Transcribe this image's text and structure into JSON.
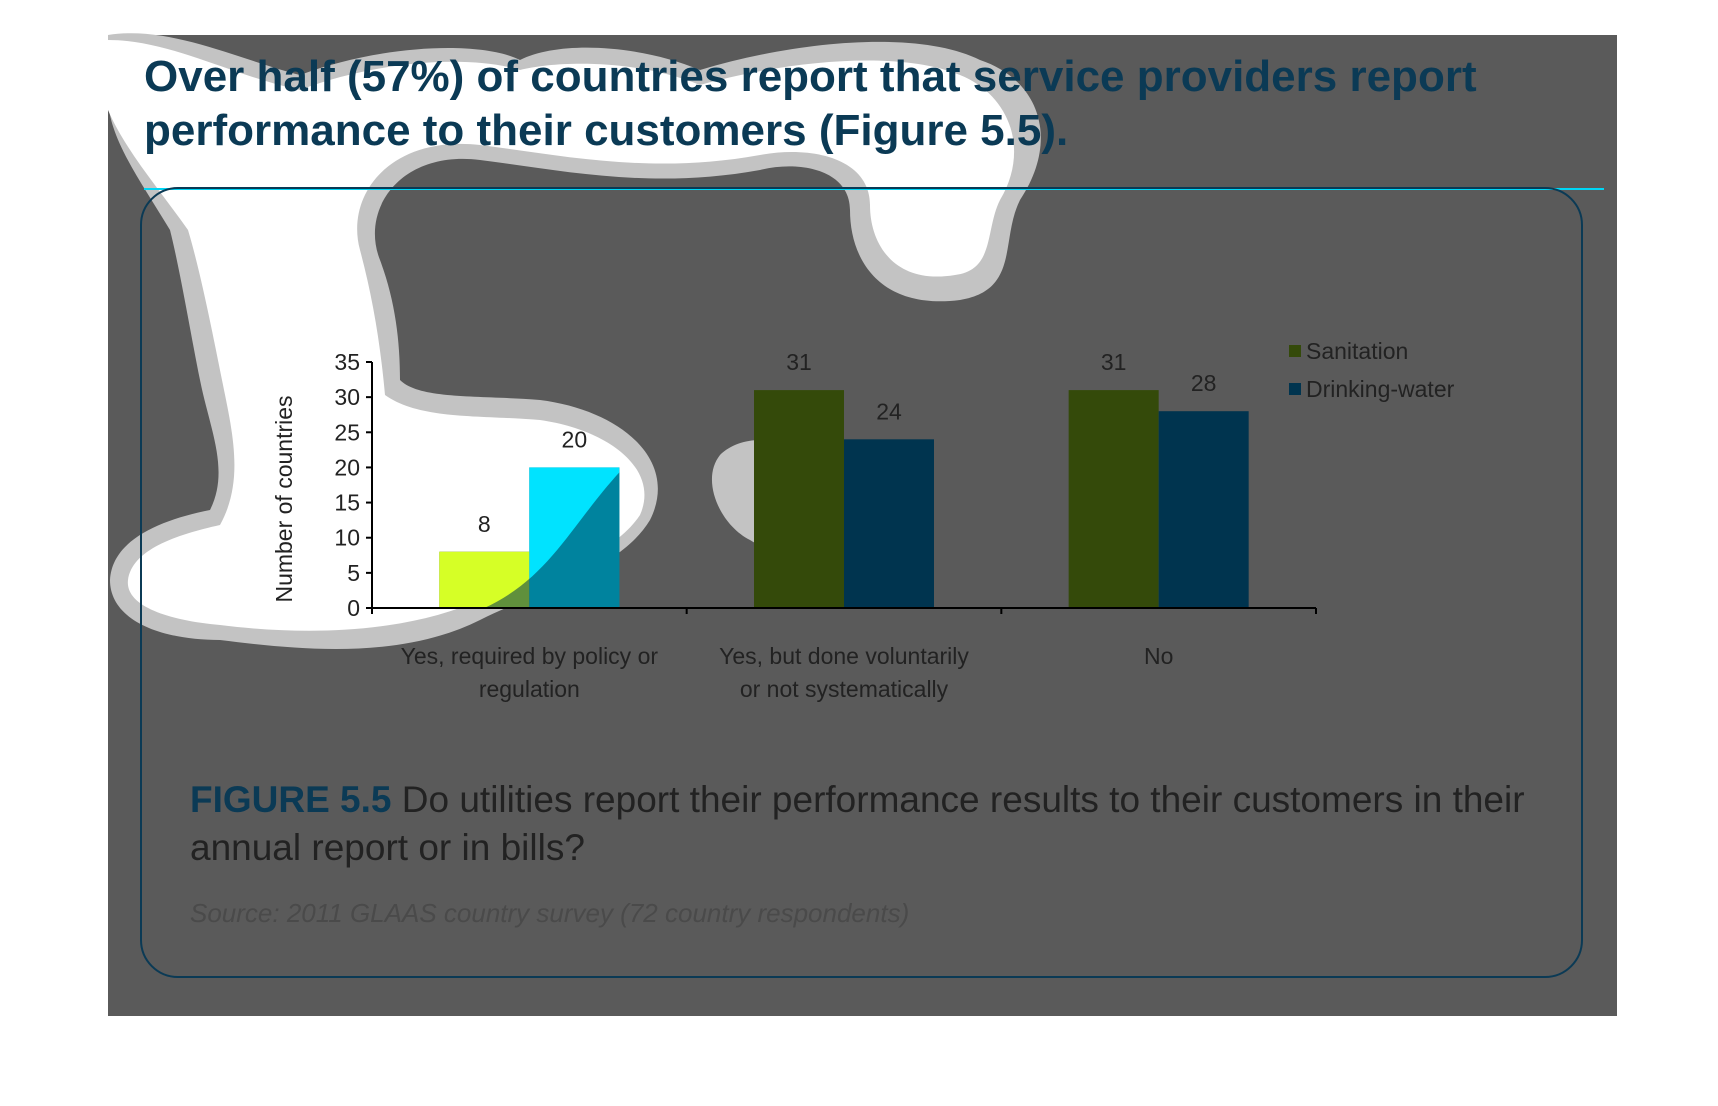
{
  "headline": "Over half (57%) of countries report that service providers report performance to their customers (Figure 5.5).",
  "colors": {
    "background_dark": "#5a5a5a",
    "accent_navy": "#0b3a55",
    "accent_cyan": "#00d6f5",
    "sanitation": "#344a0a",
    "drinking_water": "#00344f",
    "sanitation_highlight": "#d6ff26",
    "drinking_water_highlight": "#00e3ff"
  },
  "chart_data": {
    "type": "bar",
    "title": "",
    "ylabel": "Number of countries",
    "xlabel": "",
    "ylim": [
      0,
      35
    ],
    "yticks": [
      "0",
      "5",
      "10",
      "15",
      "20",
      "25",
      "30",
      "35"
    ],
    "categories": [
      "Yes, required by policy or regulation",
      "Yes, but done voluntarily or not systematically",
      "No"
    ],
    "category_lines": [
      [
        "Yes, required by policy or",
        "regulation"
      ],
      [
        "Yes, but done voluntarily",
        "or not systematically"
      ],
      [
        "No"
      ]
    ],
    "series": [
      {
        "name": "Sanitation",
        "values": [
          8,
          31,
          31
        ]
      },
      {
        "name": "Drinking-water",
        "values": [
          20,
          24,
          28
        ]
      }
    ],
    "legend_position": "top-right",
    "grid": false
  },
  "caption": {
    "label": "FIGURE 5.5",
    "text": " Do utilities report their performance results to their customers in their annual report or in bills?"
  },
  "source": "Source: 2011 GLAAS country survey (72 country respondents)"
}
